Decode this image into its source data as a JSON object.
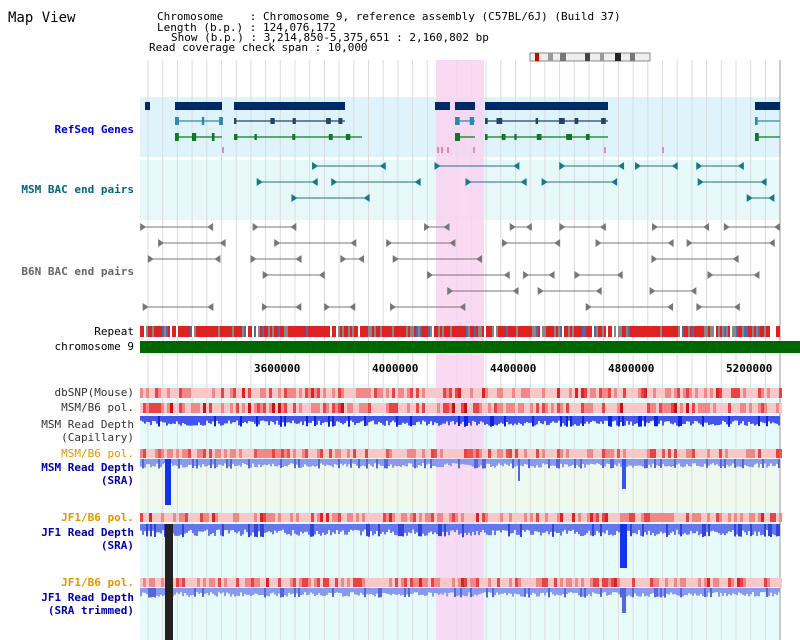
{
  "title": "Map View",
  "info": {
    "chromosome_label": "Chromosome",
    "chromosome_value": ": Chromosome 9, reference assembly (C57BL/6J) (Build 37)",
    "length_label": "Length (b.p.)",
    "length_value": ": 124,076,172",
    "show_label": "Show (b.p.)",
    "show_value": ": 3,214,850-5,375,651 : 2,160,802 bp",
    "coverage_label": "Read coverage check span",
    "coverage_value": ": 10,000"
  },
  "tracks": {
    "refseq": "RefSeq Genes",
    "msm_bac": "MSM BAC end pairs",
    "b6n_bac": "B6N BAC end pairs",
    "repeat": "Repeat",
    "chromosome": "chromosome 9",
    "dbsnp": "dbSNP(Mouse)",
    "msm_b6_pol": "MSM/B6 pol.",
    "msm_depth_cap_1": "MSM Read Depth",
    "msm_depth_cap_2": "(Capillary)",
    "msm_b6_pol2": "MSM/B6 pol.",
    "msm_depth_sra_1": "MSM Read Depth",
    "msm_depth_sra_2": "(SRA)",
    "jf1_b6_pol": "JF1/B6 pol.",
    "jf1_depth_sra_1": "JF1 Read Depth",
    "jf1_depth_sra_2": "(SRA)",
    "jf1_b6_pol2": "JF1/B6 pol.",
    "jf1_depth_trim_1": "JF1 Read Depth",
    "jf1_depth_trim_2": "(SRA trimmed)"
  },
  "axis_ticks": [
    "3600000",
    "4000000",
    "4400000",
    "4800000",
    "5200000"
  ],
  "colors": {
    "refseq_bg": "#dff3fb",
    "refseq_label": "#0000cc",
    "msm_bac_label": "#006680",
    "b6n_bac_label": "#666666",
    "pol_label": "#e69500",
    "depth_label": "#0000aa",
    "highlight": "#f9d4f1",
    "chromosome_bar": "#006600",
    "gene_dark": "#002a66"
  }
}
